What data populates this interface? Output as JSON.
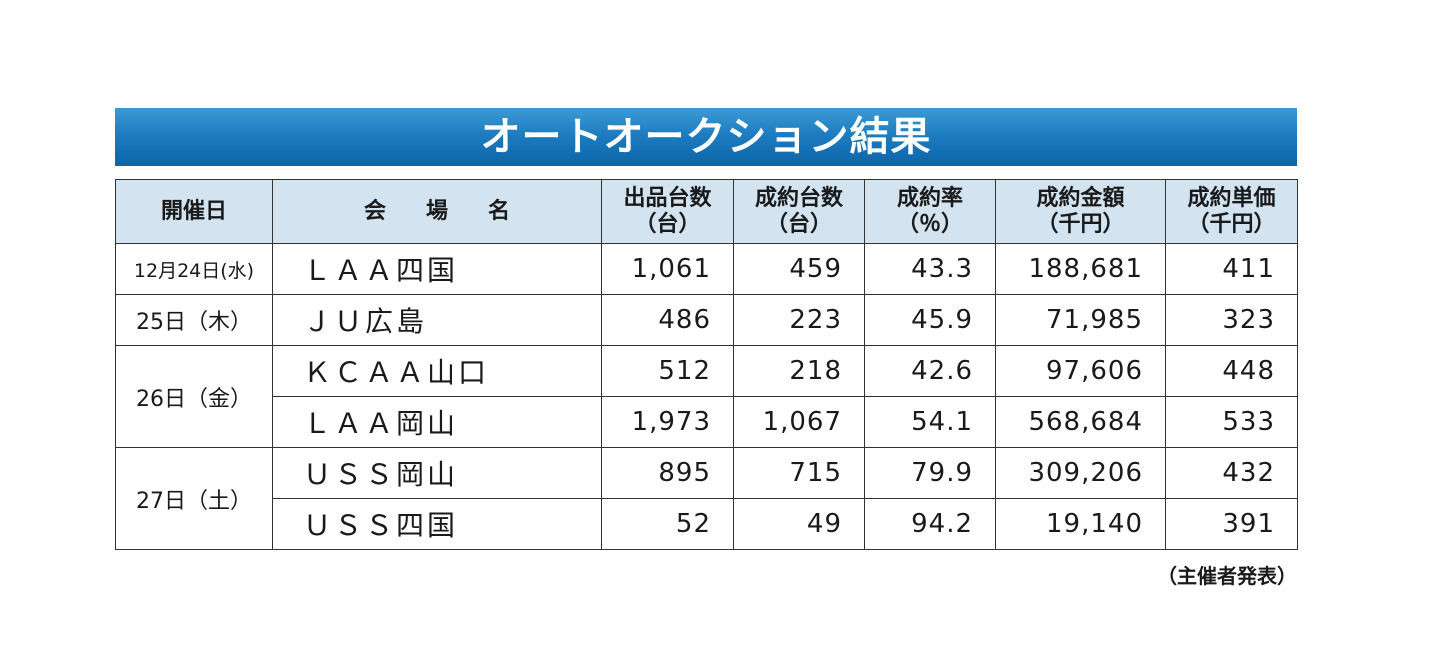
{
  "title": "オートオークション結果",
  "headers": {
    "date": "開催日",
    "venue": "会場名",
    "listed_line1": "出品台数",
    "listed_line2": "（台）",
    "sold_line1": "成約台数",
    "sold_line2": "（台）",
    "rate_line1": "成約率",
    "rate_line2": "（％）",
    "amount_line1": "成約金額",
    "amount_line2": "（千円）",
    "unit_line1": "成約単価",
    "unit_line2": "（千円）"
  },
  "rows": [
    {
      "date": "12月24日(水)",
      "venue": "ＬＡＡ四国",
      "listed": "1,061",
      "sold": "459",
      "rate": "43.3",
      "amount": "188,681",
      "unit_price": "411"
    },
    {
      "date": "25日（木）",
      "venue": "ＪＵ広島",
      "listed": "486",
      "sold": "223",
      "rate": "45.9",
      "amount": "71,985",
      "unit_price": "323"
    },
    {
      "date": "26日（金）",
      "venue": "ＫＣＡＡ山口",
      "listed": "512",
      "sold": "218",
      "rate": "42.6",
      "amount": "97,606",
      "unit_price": "448"
    },
    {
      "date": "",
      "venue": "ＬＡＡ岡山",
      "listed": "1,973",
      "sold": "1,067",
      "rate": "54.1",
      "amount": "568,684",
      "unit_price": "533"
    },
    {
      "date": "27日（土）",
      "venue": "ＵＳＳ岡山",
      "listed": "895",
      "sold": "715",
      "rate": "79.9",
      "amount": "309,206",
      "unit_price": "432"
    },
    {
      "date": "",
      "venue": "ＵＳＳ四国",
      "listed": "52",
      "sold": "49",
      "rate": "94.2",
      "amount": "19,140",
      "unit_price": "391"
    }
  ],
  "source": "（主催者発表）"
}
